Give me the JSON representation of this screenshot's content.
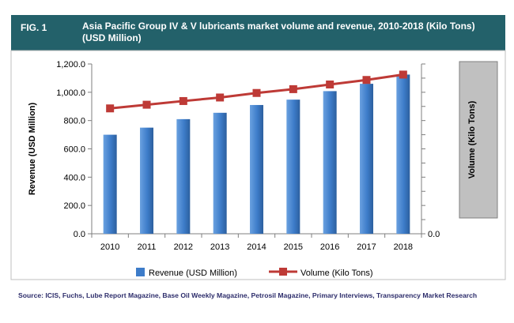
{
  "header": {
    "fig_label": "FIG. 1",
    "title": "Asia Pacific Group IV & V lubricants market volume and revenue, 2010-2018  (Kilo Tons) (USD Million)"
  },
  "source": "Source: ICIS, Fuchs, Lube Report Magazine, Base Oil Weekly Magazine, Petrosil Magazine, Primary Interviews, Transparency Market Research",
  "colors": {
    "bar": "#3d7cc9",
    "line": "#be3a36",
    "header": "#23616a",
    "source": "#2d2d6b"
  },
  "chart_data": {
    "type": "bar",
    "categories": [
      "2010",
      "2011",
      "2012",
      "2013",
      "2014",
      "2015",
      "2016",
      "2017",
      "2018"
    ],
    "series": [
      {
        "name": "Revenue (USD Million)",
        "type": "bar",
        "axis": "left",
        "values": [
          700,
          750,
          810,
          855,
          910,
          948,
          1008,
          1060,
          1125
        ]
      },
      {
        "name": "Volume (Kilo Tons)",
        "type": "line",
        "axis": "right",
        "values": [
          886,
          912,
          938,
          963,
          995,
          1022,
          1055,
          1087,
          1125
        ]
      }
    ],
    "ylabel": "Revenue (USD Million)",
    "ylabel_right": "Volume (Kilo Tons)",
    "ylim": [
      0,
      1200
    ],
    "yticks": [
      "0.0",
      "200.0",
      "400.0",
      "600.0",
      "800.0",
      "1,000.0",
      "1,200.0"
    ],
    "yticks_right": [
      "0.0"
    ],
    "legend_position": "bottom",
    "grid": false
  }
}
